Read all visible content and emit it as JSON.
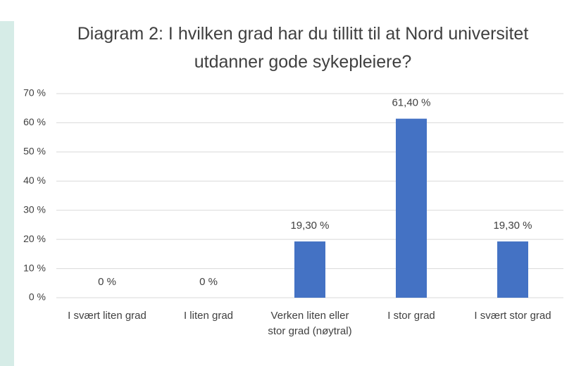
{
  "chart_data": {
    "type": "bar",
    "title": "Diagram 2: I hvilken grad har du tillitt til at Nord universitet utdanner gode sykepleiere?",
    "categories": [
      "I svært liten grad",
      "I liten grad",
      "Verken liten eller stor grad (nøytral)",
      "I stor grad",
      "I svært stor grad"
    ],
    "values": [
      0,
      0,
      19.3,
      61.4,
      19.3
    ],
    "value_labels": [
      "0 %",
      "0 %",
      "19,30 %",
      "61,40 %",
      "19,30 %"
    ],
    "color": "#4472c4",
    "ylim": [
      0,
      70
    ],
    "yticks": [
      {
        "value": 0,
        "label": "0 %"
      },
      {
        "value": 10,
        "label": "10 %"
      },
      {
        "value": 20,
        "label": "20 %"
      },
      {
        "value": 30,
        "label": "30 %"
      },
      {
        "value": 40,
        "label": "40 %"
      },
      {
        "value": 50,
        "label": "50 %"
      },
      {
        "value": 60,
        "label": "60 %"
      },
      {
        "value": 70,
        "label": "70 %"
      }
    ],
    "grid": true
  }
}
